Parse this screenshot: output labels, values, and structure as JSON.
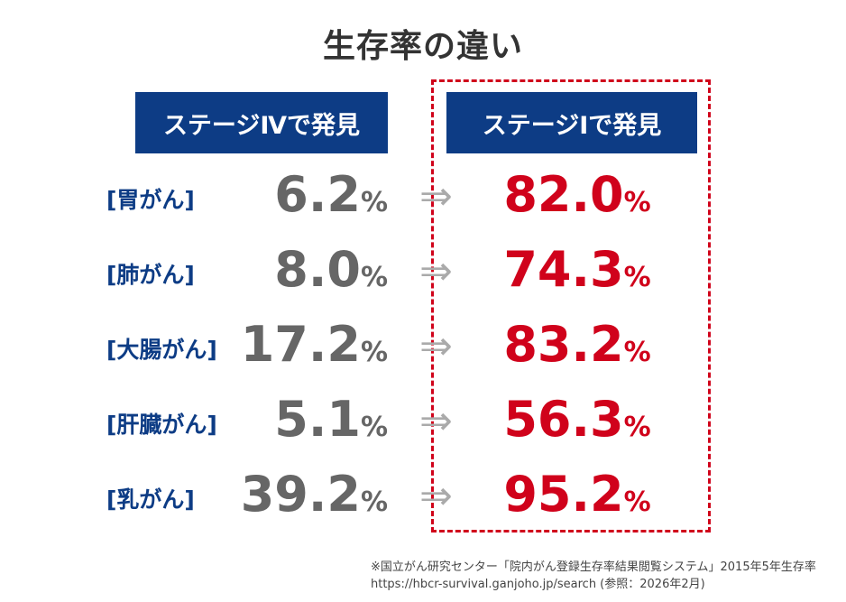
{
  "title": "生存率の違い",
  "headers": {
    "stage4": "ステージⅣで発見",
    "stage1": "ステージⅠで発見"
  },
  "colors": {
    "navy": "#0d3c85",
    "red": "#d0021b",
    "gray": "#666666"
  },
  "arrow_icon": "⇒",
  "unit": "%",
  "chart_data": {
    "type": "table",
    "title": "生存率の違い",
    "columns": [
      "ステージⅣで発見",
      "ステージⅠで発見"
    ],
    "rows": [
      {
        "label": "[胃がん]",
        "stage4": "6.2",
        "stage1": "82.0"
      },
      {
        "label": "[肺がん]",
        "stage4": "8.0",
        "stage1": "74.3"
      },
      {
        "label": "[大腸がん]",
        "stage4": "17.2",
        "stage1": "83.2"
      },
      {
        "label": "[肝臓がん]",
        "stage4": "5.1",
        "stage1": "56.3"
      },
      {
        "label": "[乳がん]",
        "stage4": "39.2",
        "stage1": "95.2"
      }
    ]
  },
  "footnote": {
    "line1": "※国立がん研究センター「院内がん登録生存率結果閲覧システム」2015年5年生存率",
    "line2": "https://hbcr-survival.ganjoho.jp/search (参照：2026年2月)"
  }
}
